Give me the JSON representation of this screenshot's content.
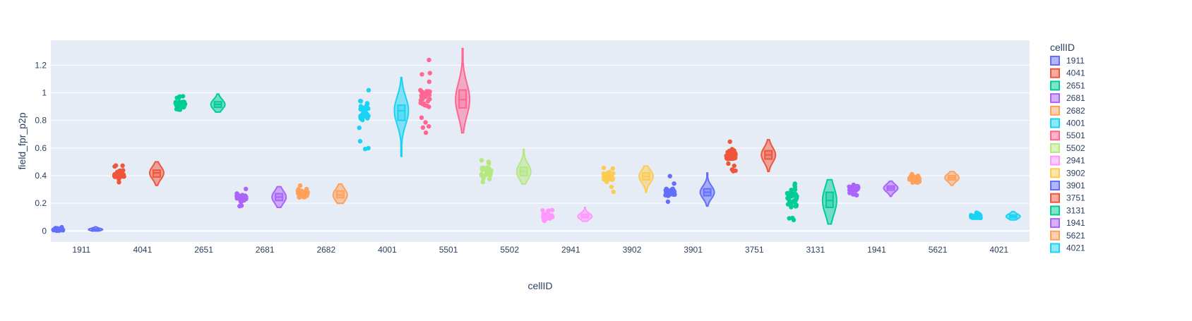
{
  "chart_data": {
    "type": "violin",
    "xlabel": "cellID",
    "ylabel": "field_fpr_p2p",
    "ylim": [
      -0.08,
      1.38
    ],
    "yticks": [
      0,
      0.2,
      0.4,
      0.6,
      0.8,
      1,
      1.2
    ],
    "ytick_labels": [
      "0",
      "0.2",
      "0.4",
      "0.6",
      "0.8",
      "1",
      "1.2"
    ],
    "grid": true,
    "legend": {
      "title": "cellID",
      "placement": "right"
    },
    "series": [
      {
        "name": "1911",
        "color": "#636efa",
        "min": 0.0,
        "q1": 0.005,
        "median": 0.01,
        "q3": 0.015,
        "max": 0.03
      },
      {
        "name": "4041",
        "color": "#EF553B",
        "min": 0.33,
        "q1": 0.39,
        "median": 0.42,
        "q3": 0.44,
        "max": 0.5
      },
      {
        "name": "2651",
        "color": "#00cc96",
        "min": 0.86,
        "q1": 0.895,
        "median": 0.915,
        "q3": 0.935,
        "max": 0.99
      },
      {
        "name": "2681",
        "color": "#ab63fa",
        "min": 0.17,
        "q1": 0.22,
        "median": 0.245,
        "q3": 0.27,
        "max": 0.32
      },
      {
        "name": "2682",
        "color": "#FFA15A",
        "min": 0.2,
        "q1": 0.24,
        "median": 0.26,
        "q3": 0.29,
        "max": 0.34
      },
      {
        "name": "4001",
        "color": "#19d3f3",
        "min": 0.54,
        "q1": 0.8,
        "median": 0.87,
        "q3": 0.91,
        "max": 1.11
      },
      {
        "name": "5501",
        "color": "#FF6692",
        "min": 0.71,
        "q1": 0.89,
        "median": 0.95,
        "q3": 1.02,
        "max": 1.32
      },
      {
        "name": "5502",
        "color": "#B6E880",
        "min": 0.34,
        "q1": 0.4,
        "median": 0.43,
        "q3": 0.46,
        "max": 0.59
      },
      {
        "name": "2941",
        "color": "#FF97FF",
        "min": 0.07,
        "q1": 0.095,
        "median": 0.105,
        "q3": 0.12,
        "max": 0.17
      },
      {
        "name": "3902",
        "color": "#FECB52",
        "min": 0.28,
        "q1": 0.37,
        "median": 0.395,
        "q3": 0.42,
        "max": 0.47
      },
      {
        "name": "3901",
        "color": "#636efa",
        "min": 0.18,
        "q1": 0.255,
        "median": 0.28,
        "q3": 0.305,
        "max": 0.42
      },
      {
        "name": "3751",
        "color": "#EF553B",
        "min": 0.43,
        "q1": 0.52,
        "median": 0.55,
        "q3": 0.58,
        "max": 0.66
      },
      {
        "name": "3131",
        "color": "#00cc96",
        "min": 0.05,
        "q1": 0.17,
        "median": 0.22,
        "q3": 0.28,
        "max": 0.37
      },
      {
        "name": "1941",
        "color": "#ab63fa",
        "min": 0.25,
        "q1": 0.295,
        "median": 0.31,
        "q3": 0.325,
        "max": 0.36
      },
      {
        "name": "5621",
        "color": "#FFA15A",
        "min": 0.33,
        "q1": 0.37,
        "median": 0.385,
        "q3": 0.4,
        "max": 0.43
      },
      {
        "name": "4021",
        "color": "#19d3f3",
        "min": 0.08,
        "q1": 0.095,
        "median": 0.105,
        "q3": 0.115,
        "max": 0.14
      }
    ]
  }
}
